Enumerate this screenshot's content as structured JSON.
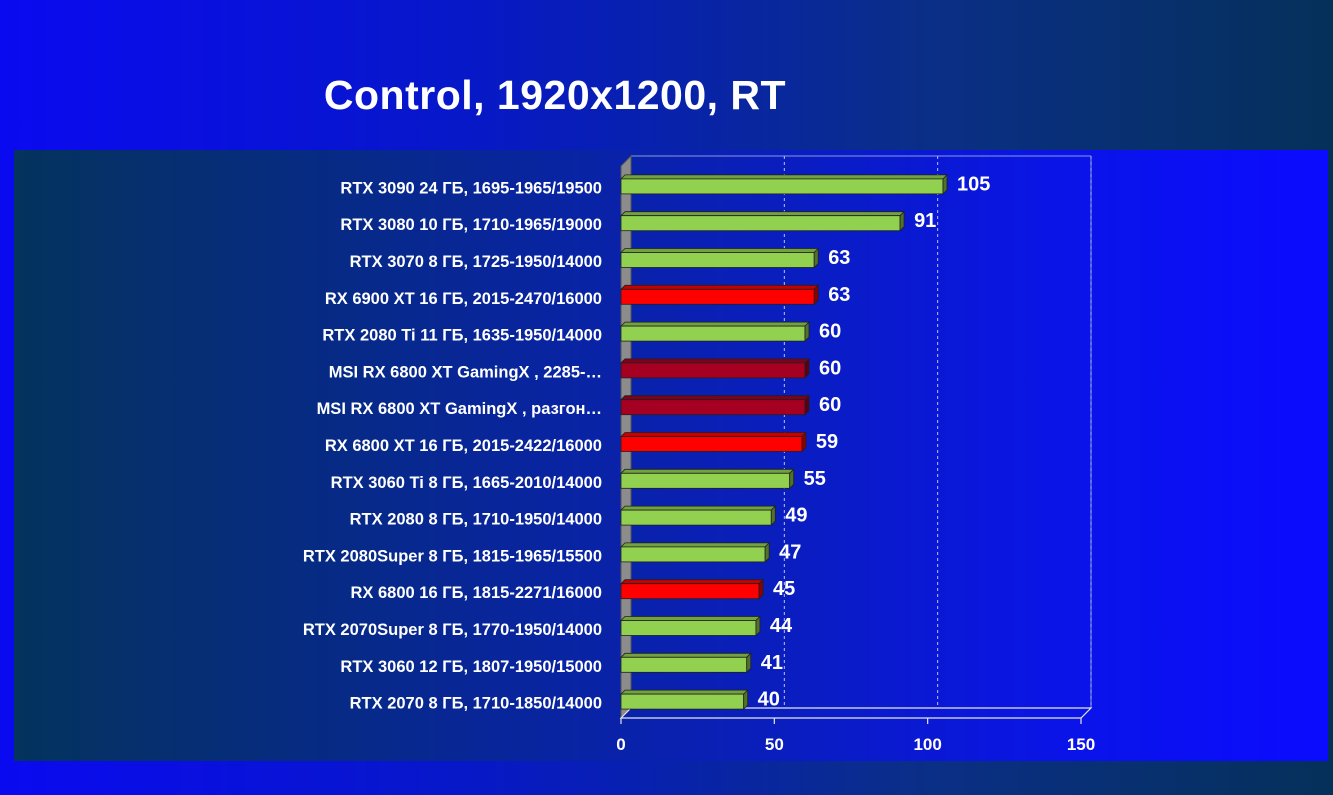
{
  "title": "Control, 1920x1200,  RT",
  "chart_data": {
    "type": "bar",
    "orientation": "horizontal",
    "style": "3d",
    "xlim": [
      0,
      150
    ],
    "xticks": [
      0,
      50,
      100,
      150
    ],
    "grid": "vertical dashed",
    "legend": "none",
    "categories": [
      "RTX 3090 24 ГБ, 1695-1965/19500",
      "RTX 3080 10 ГБ, 1710-1965/19000",
      "RTX 3070 8 ГБ, 1725-1950/14000",
      "RX 6900 XT 16 ГБ, 2015-2470/16000",
      "RTX 2080 Ti 11 ГБ, 1635-1950/14000",
      "MSI RX 6800 XT GamingX , 2285-…",
      "MSI RX 6800 XT GamingX ,  разгон…",
      "RX 6800 XT 16 ГБ, 2015-2422/16000",
      "RTX 3060 Ti 8 ГБ, 1665-2010/14000",
      "RTX 2080 8 ГБ, 1710-1950/14000",
      "RTX 2080Super 8 ГБ, 1815-1965/15500",
      "RX 6800 16 ГБ, 1815-2271/16000",
      "RTX 2070Super 8 ГБ, 1770-1950/14000",
      "RTX 3060 12 ГБ, 1807-1950/15000",
      "RTX 2070 8 ГБ, 1710-1850/14000"
    ],
    "values": [
      105,
      91,
      63,
      63,
      60,
      60,
      60,
      59,
      55,
      49,
      47,
      45,
      44,
      41,
      40
    ],
    "bar_colors": [
      "green",
      "green",
      "green",
      "red",
      "green",
      "darkred",
      "darkred",
      "red",
      "green",
      "green",
      "green",
      "red",
      "green",
      "green",
      "green"
    ],
    "palette": {
      "green": "#92d050",
      "red": "#ff0000",
      "darkred": "#a50021"
    }
  }
}
